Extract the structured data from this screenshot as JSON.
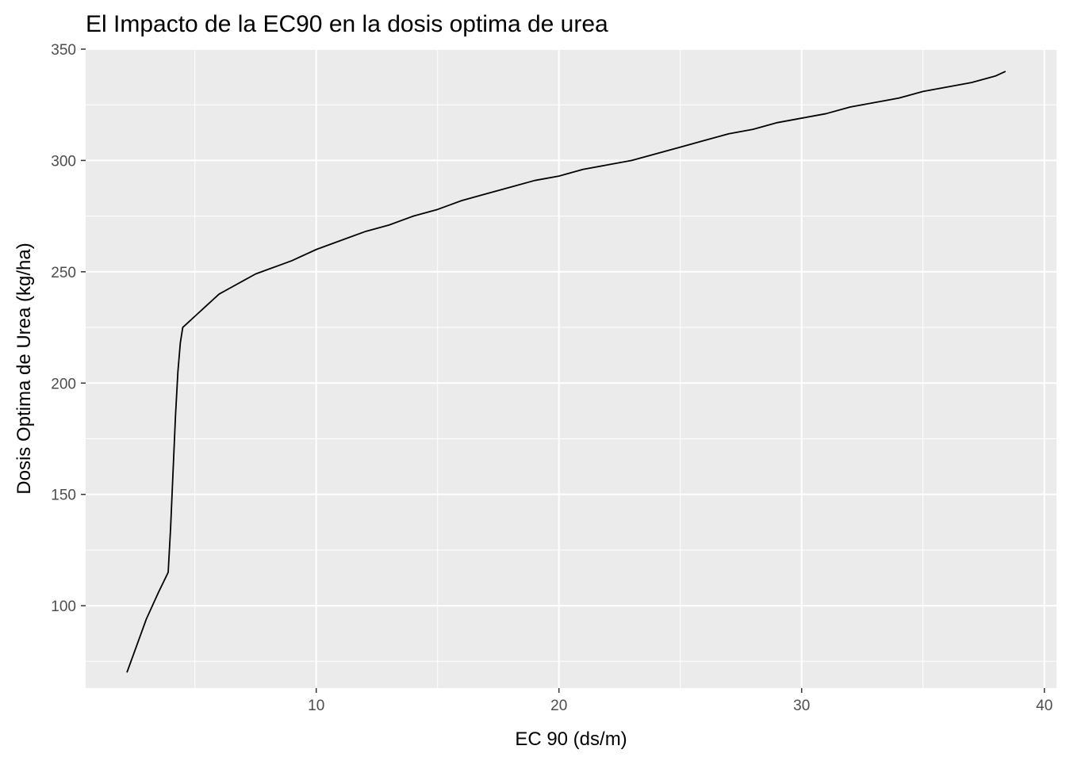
{
  "chart_data": {
    "type": "line",
    "title": "El Impacto de la EC90 en la dosis optima de urea",
    "xlabel": "EC 90 (ds/m)",
    "ylabel": "Dosis Optima de Urea (kg/ha)",
    "xlim": [
      0.5,
      40.5
    ],
    "ylim": [
      63,
      350
    ],
    "x_ticks": [
      10,
      20,
      30,
      40
    ],
    "x_tick_labels": [
      "10",
      "20",
      "30",
      "40"
    ],
    "y_ticks": [
      100,
      150,
      200,
      250,
      300,
      350
    ],
    "y_tick_labels": [
      "100",
      "150",
      "200",
      "250",
      "300",
      "350"
    ],
    "grid": true,
    "panel_background": "#ebebeb",
    "grid_color": "#ffffff",
    "line_color": "#000000",
    "series": [
      {
        "x": [
          2.2,
          2.6,
          3.0,
          3.5,
          3.9,
          4.0,
          4.1,
          4.2,
          4.3,
          4.4,
          4.5,
          4.7,
          5.0,
          5.5,
          6.0,
          6.5,
          7.0,
          7.5,
          8.0,
          8.5,
          9.0,
          10.0,
          11.0,
          12.0,
          13.0,
          14.0,
          15.0,
          16.0,
          17.0,
          18.0,
          19.0,
          20.0,
          21.0,
          22.0,
          23.0,
          24.0,
          25.0,
          26.0,
          27.0,
          28.0,
          29.0,
          30.0,
          31.0,
          32.0,
          33.0,
          34.0,
          35.0,
          36.0,
          37.0,
          38.0,
          38.4
        ],
        "y": [
          70,
          82,
          94,
          106,
          115,
          135,
          160,
          185,
          205,
          218,
          225,
          227,
          230,
          235,
          240,
          243,
          246,
          249,
          251,
          253,
          255,
          260,
          264,
          268,
          271,
          275,
          278,
          282,
          285,
          288,
          291,
          293,
          296,
          298,
          300,
          303,
          306,
          309,
          312,
          314,
          317,
          319,
          321,
          324,
          326,
          328,
          331,
          333,
          335,
          338,
          340
        ]
      }
    ]
  }
}
